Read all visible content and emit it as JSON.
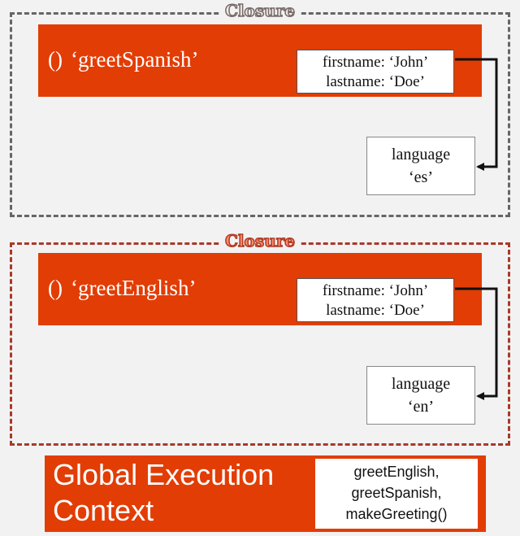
{
  "closures": [
    {
      "title": "Closure",
      "function_label": "‘greetSpanish’",
      "function_sig": "()",
      "vars": [
        "firstname: ‘John’",
        "lastname: ‘Doe’"
      ],
      "outer_vars": [
        "language",
        "‘es’"
      ]
    },
    {
      "title": "Closure",
      "function_label": "‘greetEnglish’",
      "function_sig": "()",
      "vars": [
        "firstname: ‘John’",
        "lastname: ‘Doe’"
      ],
      "outer_vars": [
        "language",
        "‘en’"
      ]
    }
  ],
  "global": {
    "title_line1": "Global Execution",
    "title_line2": "Context",
    "vars": [
      "greetEnglish,",
      "greetSpanish,",
      "makeGreeting()"
    ]
  },
  "colors": {
    "accent": "#e23d05",
    "closure_gray": "#666666",
    "closure_red": "#a83a2a",
    "background": "#f2f2f2"
  }
}
